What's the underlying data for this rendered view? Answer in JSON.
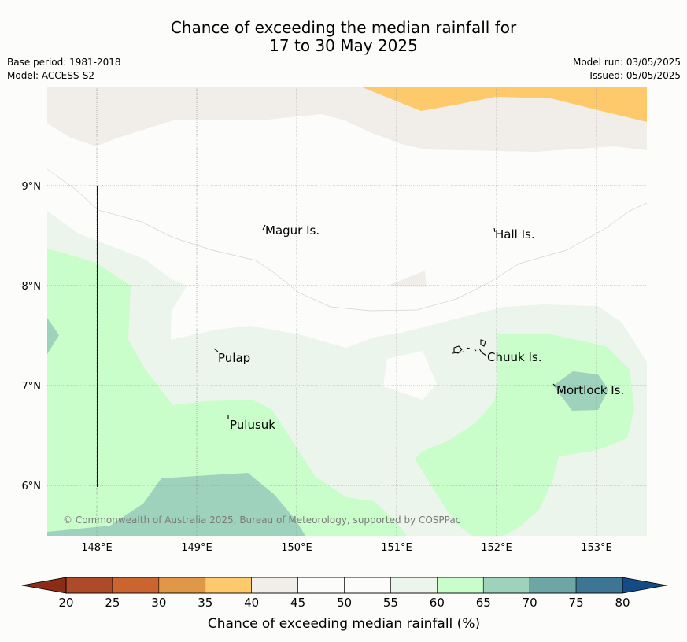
{
  "title": {
    "line1": "Chance of exceeding the median rainfall for",
    "line2": "17 to 30 May 2025"
  },
  "meta": {
    "base_period": "Base period: 1981-2018",
    "model": "Model: ACCESS-S2",
    "model_run": "Model run: 03/05/2025",
    "issued": "Issued: 05/05/2025"
  },
  "map": {
    "lon_range": [
      147.5,
      153.5
    ],
    "lat_range": [
      5.5,
      10.0
    ],
    "lon_ticks": [
      "148°E",
      "149°E",
      "150°E",
      "151°E",
      "152°E",
      "153°E"
    ],
    "lat_ticks": [
      "9°N",
      "8°N",
      "7°N",
      "6°N"
    ],
    "places": [
      "Magur Is.",
      "Hall Is.",
      "Pulap",
      "Chuuk Is.",
      "Mortlock Is.",
      "Pulusuk"
    ],
    "copyright": "© Commonwealth of Australia 2025, Bureau of Meteorology, supported by COSPPac"
  },
  "colorbar": {
    "label": "Chance of exceeding median rainfall (%)",
    "ticks": [
      "20",
      "25",
      "30",
      "35",
      "40",
      "45",
      "50",
      "55",
      "60",
      "65",
      "70",
      "75",
      "80"
    ],
    "colors": [
      "#ad4a27",
      "#cb6530",
      "#e09848",
      "#fdc96a",
      "#f1ede8",
      "#fcfdfb",
      "#fcfdfb",
      "#ebf5eb",
      "#c9fdca",
      "#9fd2bc",
      "#6ea6a6",
      "#3d7694"
    ],
    "low_color": "#8b2c16",
    "high_color": "#144a86"
  }
}
